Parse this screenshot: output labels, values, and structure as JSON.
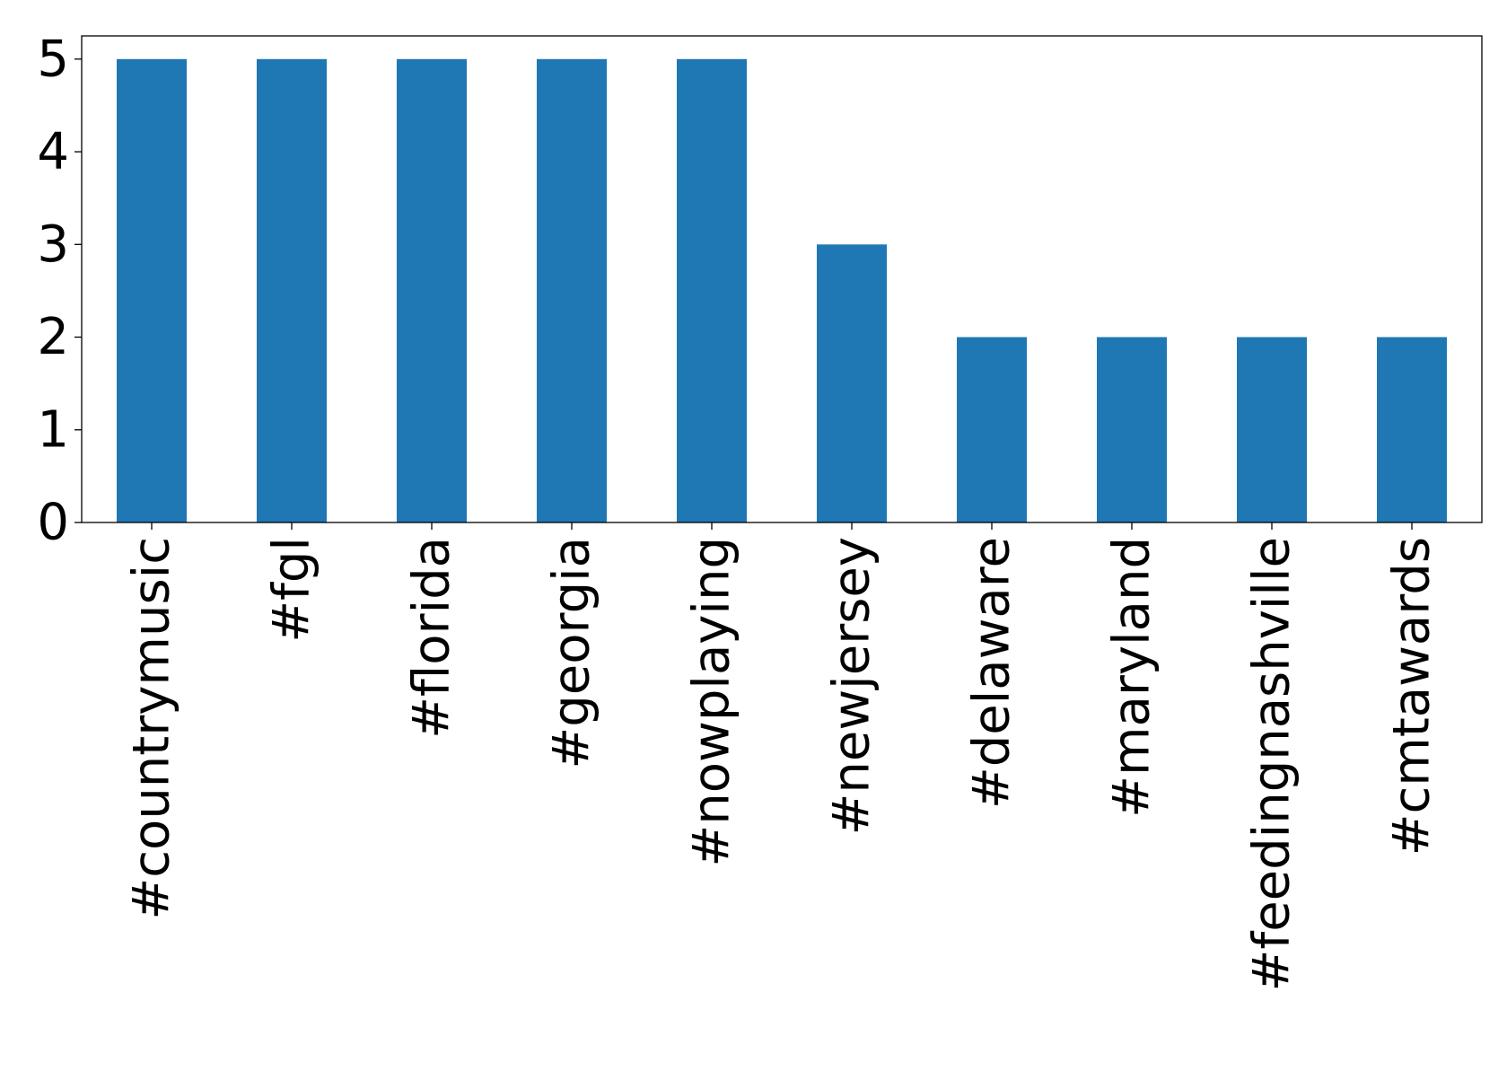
{
  "chart_data": {
    "type": "bar",
    "title": "",
    "xlabel": "",
    "ylabel": "",
    "categories": [
      "#countrymusic",
      "#fgl",
      "#florida",
      "#georgia",
      "#nowplaying",
      "#newjersey",
      "#delaware",
      "#maryland",
      "#feedingnashville",
      "#cmtawards"
    ],
    "values": [
      5,
      5,
      5,
      5,
      5,
      3,
      2,
      2,
      2,
      2
    ],
    "ylim": [
      0,
      5.25
    ],
    "yticks": [
      "0",
      "1",
      "2",
      "3",
      "4",
      "5"
    ],
    "grid": false,
    "bar_color": "#1f77b4"
  }
}
